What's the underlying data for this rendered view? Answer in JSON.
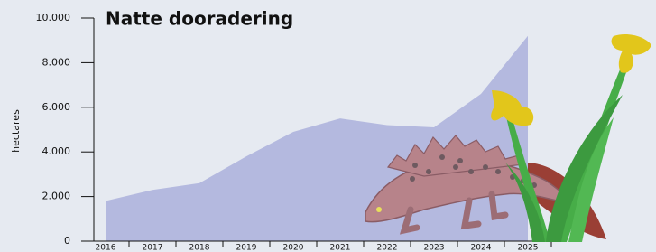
{
  "chart_data": {
    "type": "area",
    "title": "Natte dooradering",
    "ylabel": "hectares",
    "x": [
      2016,
      2017,
      2018,
      2019,
      2020,
      2021,
      2022,
      2023,
      2024,
      2025
    ],
    "values": [
      1800,
      2300,
      2600,
      3800,
      4900,
      5500,
      5200,
      5100,
      6600,
      9200
    ],
    "color": "#b4b9df",
    "xlim": [
      2016,
      2025
    ],
    "xticks": [
      2016,
      2017,
      2018,
      2019,
      2020,
      2021,
      2022,
      2023,
      2024,
      2025
    ],
    "ylim": [
      0,
      10000
    ],
    "yticks": [
      0,
      {
        "value": 2000,
        "label": "2.000"
      },
      {
        "value": 4000,
        "label": "4.000"
      },
      {
        "value": 6000,
        "label": "6.000"
      },
      {
        "value": 8000,
        "label": "8.000"
      },
      {
        "value": 10000,
        "label": "10.000"
      }
    ]
  }
}
